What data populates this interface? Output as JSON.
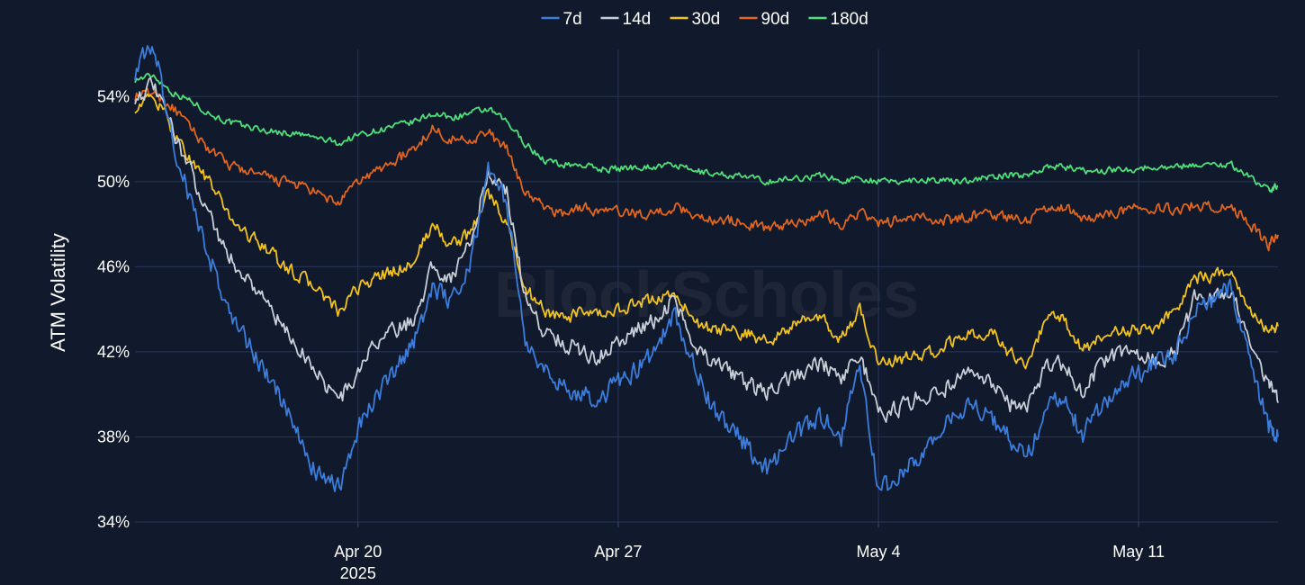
{
  "chart_data": {
    "type": "line",
    "title": "",
    "xlabel": "",
    "ylabel": "ATM Volatility",
    "watermark": "BlockScholes",
    "legend_position": "top-center",
    "grid": true,
    "ylim": [
      34,
      56
    ],
    "y_ticks": [
      {
        "value": 34,
        "label": "34%"
      },
      {
        "value": 38,
        "label": "38%"
      },
      {
        "value": 42,
        "label": "42%"
      },
      {
        "value": 46,
        "label": "46%"
      },
      {
        "value": 50,
        "label": "50%"
      },
      {
        "value": 54,
        "label": "54%"
      }
    ],
    "xlim": [
      "2025-04-14",
      "2025-05-14T18:00"
    ],
    "x_ticks": [
      {
        "value": "2025-04-20",
        "label": "Apr 20",
        "sublabel": "2025"
      },
      {
        "value": "2025-04-27",
        "label": "Apr 27",
        "sublabel": ""
      },
      {
        "value": "2025-05-04",
        "label": "May 4",
        "sublabel": ""
      },
      {
        "value": "2025-05-11",
        "label": "May 11",
        "sublabel": ""
      }
    ],
    "x": [
      "2025-04-14",
      "2025-04-14T12:00",
      "2025-04-15",
      "2025-04-15T12:00",
      "2025-04-16",
      "2025-04-16T12:00",
      "2025-04-17",
      "2025-04-17T12:00",
      "2025-04-18",
      "2025-04-18T12:00",
      "2025-04-19",
      "2025-04-19T12:00",
      "2025-04-20",
      "2025-04-20T12:00",
      "2025-04-21",
      "2025-04-21T12:00",
      "2025-04-22",
      "2025-04-22T12:00",
      "2025-04-23",
      "2025-04-23T12:00",
      "2025-04-24",
      "2025-04-24T12:00",
      "2025-04-25",
      "2025-04-25T12:00",
      "2025-04-26",
      "2025-04-26T12:00",
      "2025-04-27",
      "2025-04-27T12:00",
      "2025-04-28",
      "2025-04-28T12:00",
      "2025-04-29",
      "2025-04-29T12:00",
      "2025-04-30",
      "2025-04-30T12:00",
      "2025-05-01",
      "2025-05-01T12:00",
      "2025-05-02",
      "2025-05-02T12:00",
      "2025-05-03",
      "2025-05-03T12:00",
      "2025-05-04",
      "2025-05-04T12:00",
      "2025-05-05",
      "2025-05-05T12:00",
      "2025-05-06",
      "2025-05-06T12:00",
      "2025-05-07",
      "2025-05-07T12:00",
      "2025-05-08",
      "2025-05-08T12:00",
      "2025-05-09",
      "2025-05-09T12:00",
      "2025-05-10",
      "2025-05-10T12:00",
      "2025-05-11",
      "2025-05-11T12:00",
      "2025-05-12",
      "2025-05-12T12:00",
      "2025-05-13",
      "2025-05-13T12:00",
      "2025-05-14",
      "2025-05-14T12:00",
      "2025-05-14T18:00"
    ],
    "series": [
      {
        "name": "7d",
        "color": "#3b7ddd",
        "values": [
          55.2,
          56.5,
          52.0,
          49.0,
          46.5,
          44.0,
          42.5,
          41.0,
          39.5,
          37.5,
          36.0,
          35.6,
          38.5,
          40.0,
          41.0,
          42.5,
          45.0,
          44.5,
          46.0,
          50.5,
          49.0,
          42.5,
          41.0,
          40.5,
          40.0,
          39.8,
          40.5,
          41.2,
          42.0,
          43.8,
          41.5,
          39.5,
          38.5,
          37.5,
          36.5,
          37.5,
          38.5,
          39.0,
          38.0,
          41.5,
          35.5,
          36.0,
          37.0,
          38.0,
          38.8,
          39.5,
          39.0,
          38.0,
          37.0,
          39.5,
          40.0,
          38.0,
          39.5,
          40.5,
          41.0,
          41.5,
          42.0,
          44.0,
          44.5,
          45.0,
          41.5,
          38.5,
          38.0
        ]
      },
      {
        "name": "14d",
        "color": "#c8ced8",
        "values": [
          54.0,
          54.5,
          52.5,
          50.5,
          48.5,
          46.5,
          45.5,
          44.5,
          43.0,
          42.0,
          40.8,
          39.7,
          41.0,
          42.5,
          43.0,
          43.5,
          46.0,
          45.5,
          47.0,
          50.5,
          49.5,
          44.5,
          43.0,
          42.5,
          42.0,
          41.8,
          42.5,
          43.0,
          43.5,
          44.5,
          42.5,
          41.5,
          41.0,
          40.5,
          40.0,
          40.8,
          41.0,
          41.5,
          40.5,
          42.0,
          39.0,
          39.3,
          39.8,
          40.0,
          40.5,
          41.0,
          40.5,
          39.5,
          39.5,
          41.2,
          41.5,
          40.0,
          41.5,
          42.0,
          42.0,
          41.5,
          42.0,
          44.5,
          44.5,
          45.0,
          42.5,
          40.5,
          39.6
        ]
      },
      {
        "name": "30d",
        "color": "#f2c31e",
        "values": [
          53.5,
          54.0,
          52.5,
          51.0,
          50.0,
          48.5,
          47.5,
          47.0,
          46.0,
          45.5,
          44.8,
          43.8,
          45.0,
          45.5,
          45.8,
          46.2,
          48.0,
          47.0,
          47.5,
          49.5,
          48.0,
          45.0,
          44.0,
          43.5,
          43.8,
          43.7,
          44.0,
          44.2,
          44.5,
          44.8,
          43.5,
          43.0,
          43.0,
          42.8,
          42.5,
          43.0,
          43.5,
          43.5,
          42.5,
          44.0,
          41.5,
          41.6,
          41.8,
          42.0,
          42.5,
          42.8,
          43.0,
          42.0,
          41.5,
          43.5,
          43.5,
          42.0,
          42.8,
          43.0,
          43.0,
          43.2,
          44.0,
          45.5,
          45.5,
          45.8,
          44.0,
          43.0,
          43.2
        ]
      },
      {
        "name": "90d",
        "color": "#e0651e",
        "values": [
          54.0,
          54.2,
          53.5,
          52.5,
          51.5,
          50.8,
          50.5,
          50.2,
          50.0,
          49.8,
          49.3,
          49.0,
          50.0,
          50.5,
          51.0,
          51.5,
          52.5,
          52.0,
          52.0,
          52.3,
          51.5,
          49.5,
          48.8,
          48.5,
          48.8,
          48.6,
          48.6,
          48.5,
          48.5,
          48.8,
          48.5,
          48.2,
          48.2,
          48.0,
          47.8,
          48.0,
          48.2,
          48.5,
          48.0,
          48.6,
          48.0,
          48.2,
          48.3,
          48.2,
          48.2,
          48.4,
          48.5,
          48.3,
          48.2,
          48.8,
          48.8,
          48.3,
          48.4,
          48.6,
          48.8,
          48.8,
          48.7,
          48.9,
          48.8,
          48.8,
          48.0,
          47.0,
          47.5
        ]
      },
      {
        "name": "180d",
        "color": "#4ee07a",
        "values": [
          54.8,
          55.0,
          54.2,
          53.8,
          53.2,
          52.8,
          52.6,
          52.4,
          52.3,
          52.2,
          52.0,
          51.8,
          52.2,
          52.4,
          52.6,
          52.8,
          53.2,
          53.0,
          53.2,
          53.4,
          52.8,
          51.8,
          51.0,
          50.8,
          50.8,
          50.6,
          50.6,
          50.7,
          50.7,
          50.8,
          50.5,
          50.4,
          50.3,
          50.2,
          50.0,
          50.1,
          50.2,
          50.3,
          50.0,
          50.2,
          50.0,
          50.0,
          50.1,
          50.1,
          50.0,
          50.1,
          50.2,
          50.3,
          50.3,
          50.7,
          50.7,
          50.5,
          50.5,
          50.6,
          50.6,
          50.7,
          50.7,
          50.8,
          50.8,
          50.8,
          50.2,
          49.6,
          49.8
        ]
      }
    ]
  }
}
